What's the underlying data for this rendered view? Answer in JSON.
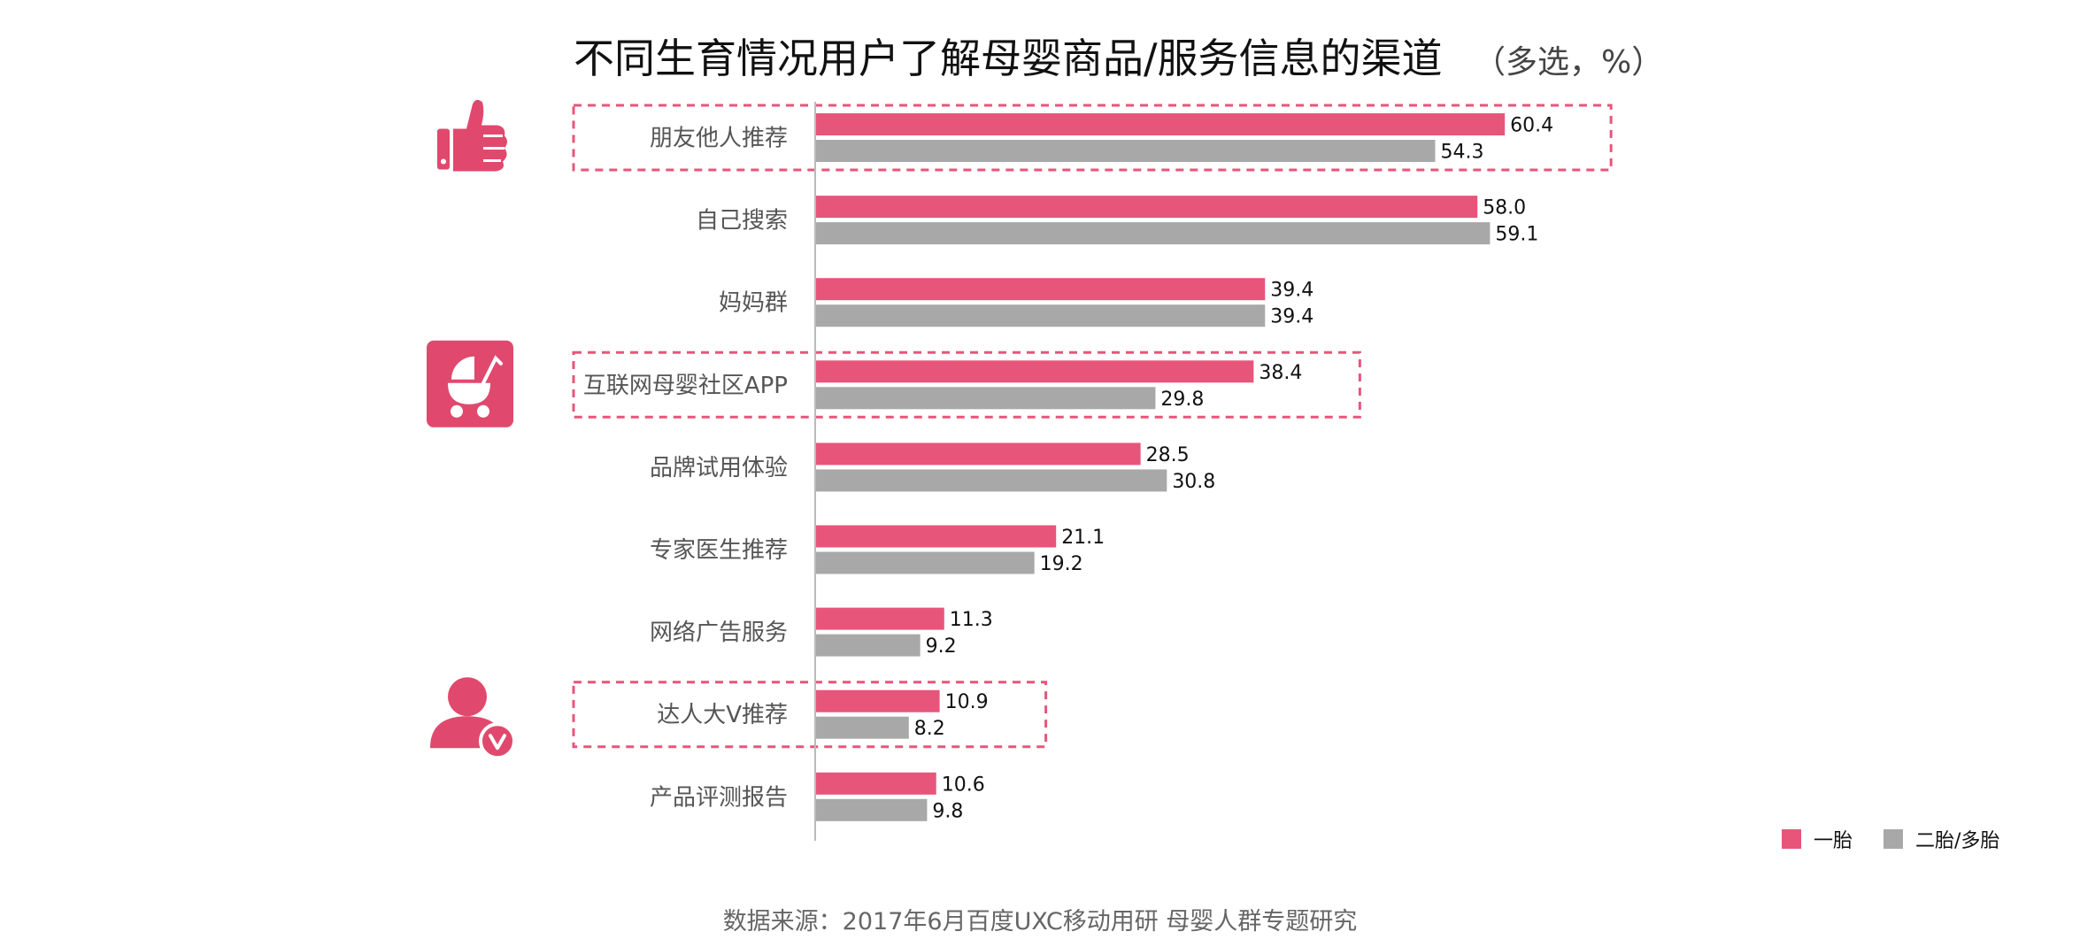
{
  "chart_data": {
    "type": "bar",
    "orientation": "horizontal",
    "title": "不同生育情况用户了解母婴商品/服务信息的渠道",
    "unit": "（多选，%）",
    "categories": [
      "朋友他人推荐",
      "自己搜索",
      "妈妈群",
      "互联网母婴社区APP",
      "品牌试用体验",
      "专家医生推荐",
      "网络广告服务",
      "达人大V推荐",
      "产品评测报告"
    ],
    "series": [
      {
        "name": "一胎",
        "color": "#E8557A",
        "values": [
          60.4,
          58.0,
          39.4,
          38.4,
          28.5,
          21.1,
          11.3,
          10.9,
          10.6
        ],
        "labels": [
          "60.4",
          "58.0",
          "39.4",
          "38.4",
          "28.5",
          "21.1",
          "11.3",
          "10.9",
          "10.6"
        ]
      },
      {
        "name": "二胎/多胎",
        "color": "#A8A8A8",
        "values": [
          54.3,
          59.1,
          39.4,
          29.8,
          30.8,
          19.2,
          9.2,
          8.2,
          9.8
        ],
        "labels": [
          "54.3",
          "59.1",
          "39.4",
          "29.8",
          "30.8",
          "19.2",
          "9.2",
          "8.2",
          "9.8"
        ]
      }
    ],
    "highlighted_categories": [
      "朋友他人推荐",
      "互联网母婴社区APP",
      "达人大V推荐"
    ],
    "icons": [
      {
        "category": "朋友他人推荐",
        "icon": "thumbs-up-icon"
      },
      {
        "category": "互联网母婴社区APP",
        "icon": "baby-stroller-icon"
      },
      {
        "category": "达人大V推荐",
        "icon": "verified-user-icon"
      }
    ],
    "legend_position": "bottom-right",
    "grid": false
  },
  "source": "数据来源：2017年6月百度UXC移动用研 母婴人群专题研究",
  "colors": {
    "highlight_border": "#E8557A",
    "axis": "#BBBBBB",
    "icon": "#E0496D"
  }
}
